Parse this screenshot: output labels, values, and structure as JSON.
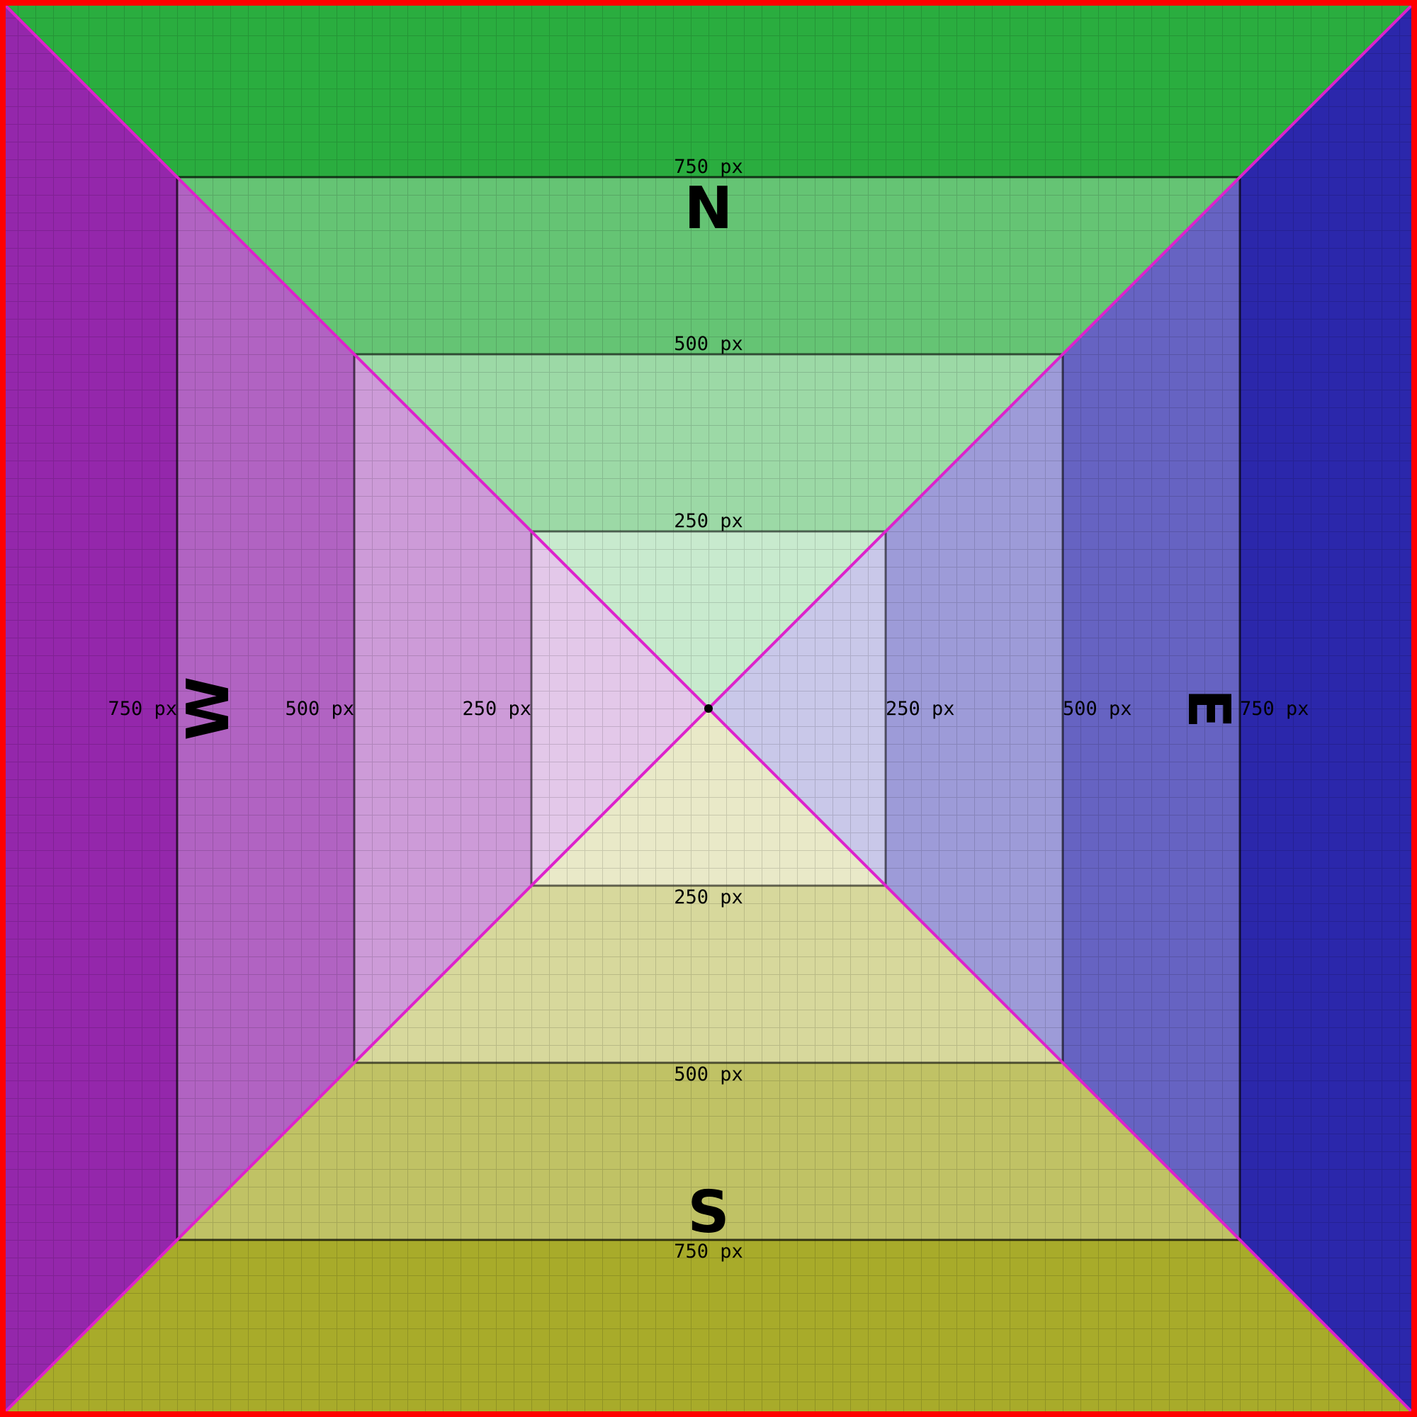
{
  "diagram": {
    "compass": {
      "north": "N",
      "south": "S",
      "east": "E",
      "west": "W"
    },
    "rings": [
      {
        "label": "250 px"
      },
      {
        "label": "500 px"
      },
      {
        "label": "750 px"
      }
    ],
    "colors": {
      "north": "#2aad3f",
      "south": "#a8ab2a",
      "east": "#2b27ab",
      "west": "#9427ab",
      "border": "#ff0000",
      "diagonal": "#dd22cc",
      "ring_overlay": "#ffffff",
      "ring_line": "#000000",
      "center_dot": "#000000"
    }
  }
}
